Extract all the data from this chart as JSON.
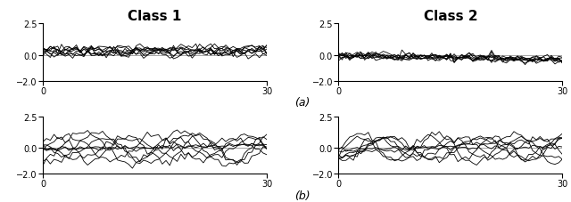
{
  "title_class1": "Class 1",
  "title_class2": "Class 2",
  "label_a": "(a)",
  "label_b": "(b)",
  "xlim": [
    0,
    30
  ],
  "ylim": [
    -2.0,
    2.5
  ],
  "yticks": [
    -2.0,
    0,
    2.5
  ],
  "xticks": [
    0,
    30
  ],
  "n_points": 61,
  "n_lines": 8,
  "line_color": "black",
  "line_width": 0.6,
  "bg_color": "white",
  "title_fontsize": 11,
  "tick_fontsize": 7,
  "label_fontsize": 9
}
